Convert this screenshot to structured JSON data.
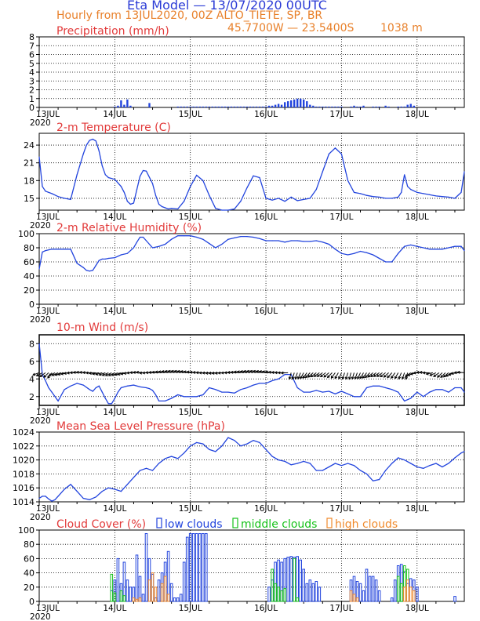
{
  "header": {
    "title": "Eta Model — 13/07/2020 00UTC",
    "subtitle": "Hourly from 13JUL2020, 00Z  ALTO_TIETE, SP, BR",
    "coords": "45.7700W — 23.5400S",
    "elevation": "1038  m"
  },
  "colors": {
    "title": "#2b3bd6",
    "header_orange": "#e8802a",
    "panel_title": "#e23a3a",
    "series": "#2244dd",
    "green": "#16c21a",
    "orange": "#f08a2c",
    "grid": "#000000"
  },
  "time_axis": {
    "labels": [
      "13JUL",
      "14JUL",
      "15JUL",
      "16JUL",
      "17JUL",
      "18JUL"
    ],
    "year": "2020",
    "hours_total": 135
  },
  "chart_data": [
    {
      "type": "bar",
      "title": "Precipitation (mm/h)",
      "ylim": [
        0,
        8
      ],
      "yticks": [
        0,
        1,
        2,
        3,
        4,
        5,
        6,
        7,
        8
      ],
      "x": [
        24,
        25,
        26,
        27,
        28,
        29,
        35,
        44,
        45,
        46,
        47,
        48,
        49,
        50,
        51,
        52,
        53,
        54,
        55,
        56,
        57,
        58,
        59,
        60,
        61,
        62,
        63,
        64,
        65,
        66,
        67,
        68,
        69,
        70,
        71,
        72,
        73,
        74,
        75,
        76,
        77,
        78,
        79,
        80,
        81,
        82,
        83,
        84,
        85,
        86,
        87,
        88,
        89,
        90,
        91,
        92,
        93,
        94,
        95,
        96,
        99,
        100,
        101,
        102,
        103,
        106,
        107,
        108,
        110,
        111,
        114,
        115,
        116,
        117,
        118,
        119
      ],
      "values": [
        0.1,
        0.2,
        0.8,
        0.3,
        0.9,
        0.2,
        0.5,
        0.1,
        0.1,
        0.1,
        0.1,
        0.1,
        0.1,
        0.1,
        0.1,
        0.1,
        0.1,
        0.1,
        0.1,
        0.1,
        0.1,
        0.1,
        0.1,
        0.1,
        0.1,
        0.1,
        0.1,
        0.1,
        0.1,
        0.1,
        0.1,
        0.1,
        0.1,
        0.1,
        0.1,
        0.1,
        0.2,
        0.2,
        0.3,
        0.4,
        0.3,
        0.6,
        0.7,
        0.8,
        0.9,
        1.0,
        1.0,
        0.9,
        0.7,
        0.3,
        0.2,
        0.1,
        0.1,
        0.1,
        0.1,
        0.1,
        0.1,
        0.1,
        0.1,
        0.1,
        0.1,
        0.2,
        0.1,
        0.1,
        0.2,
        0.1,
        0.1,
        0.1,
        0.2,
        0.1,
        0.1,
        0.1,
        0.1,
        0.3,
        0.4,
        0.2
      ]
    },
    {
      "type": "line",
      "title": "2-m Temperature (C)",
      "ylim": [
        13,
        26
      ],
      "yticks": [
        15,
        18,
        21,
        24
      ],
      "x": [
        0,
        1,
        2,
        4,
        6,
        8,
        10,
        12,
        14,
        15,
        16,
        17,
        18,
        19,
        20,
        21,
        22,
        24,
        26,
        27,
        28,
        29,
        30,
        31,
        32,
        33,
        34,
        36,
        37,
        38,
        39,
        40,
        41,
        42,
        44,
        46,
        48,
        50,
        52,
        54,
        56,
        58,
        60,
        62,
        64,
        66,
        68,
        70,
        72,
        74,
        76,
        78,
        80,
        82,
        84,
        86,
        88,
        90,
        92,
        94,
        96,
        98,
        100,
        102,
        104,
        106,
        108,
        110,
        112,
        114,
        115,
        116,
        117,
        118,
        120,
        122,
        124,
        126,
        128,
        130,
        132,
        134,
        135
      ],
      "values": [
        22,
        17,
        16.2,
        15.8,
        15.3,
        15,
        14.8,
        19,
        22.5,
        24,
        24.8,
        25,
        24.7,
        23,
        20.5,
        19,
        18.5,
        18.2,
        17,
        16,
        14.5,
        14,
        14.2,
        16.5,
        18.7,
        19.7,
        19.6,
        17.5,
        15.5,
        14,
        13.6,
        13.4,
        13.2,
        13.3,
        13.2,
        14.5,
        17,
        18.9,
        18,
        15.5,
        13.3,
        13,
        12.9,
        13.2,
        14.5,
        16.8,
        18.8,
        18.5,
        15,
        14.7,
        15,
        14.5,
        15.2,
        14.6,
        14.8,
        15,
        16.5,
        19.5,
        22.5,
        23.5,
        22.5,
        18,
        16,
        15.8,
        15.5,
        15.3,
        15.2,
        15,
        15,
        15.2,
        16,
        19,
        17,
        16.5,
        16,
        15.8,
        15.6,
        15.4,
        15.3,
        15.2,
        15,
        16,
        19.5
      ]
    },
    {
      "type": "line",
      "title": "2-m Relative Humidity (%)",
      "ylim": [
        0,
        100
      ],
      "yticks": [
        0,
        20,
        40,
        60,
        80,
        100
      ],
      "x": [
        0,
        1,
        2,
        4,
        6,
        8,
        10,
        12,
        14,
        15,
        16,
        17,
        18,
        19,
        20,
        21,
        22,
        24,
        26,
        28,
        30,
        31,
        32,
        33,
        34,
        35,
        36,
        38,
        40,
        42,
        44,
        46,
        48,
        50,
        52,
        54,
        56,
        58,
        60,
        62,
        64,
        66,
        68,
        70,
        72,
        74,
        76,
        78,
        80,
        82,
        84,
        86,
        88,
        90,
        92,
        94,
        96,
        98,
        100,
        102,
        104,
        106,
        108,
        110,
        112,
        114,
        116,
        118,
        120,
        122,
        124,
        126,
        128,
        130,
        132,
        134,
        135
      ],
      "values": [
        50,
        74,
        76,
        78,
        78,
        78,
        78,
        58,
        52,
        48,
        47,
        48,
        55,
        62,
        64,
        64,
        65,
        66,
        70,
        72,
        80,
        88,
        95,
        95,
        90,
        85,
        80,
        82,
        85,
        92,
        97,
        97,
        97,
        95,
        92,
        86,
        80,
        85,
        92,
        94,
        96,
        96,
        95,
        93,
        90,
        90,
        90,
        88,
        90,
        90,
        89,
        89,
        90,
        88,
        85,
        78,
        72,
        70,
        72,
        75,
        73,
        70,
        65,
        60,
        60,
        72,
        82,
        84,
        82,
        80,
        78,
        78,
        78,
        80,
        82,
        82,
        76
      ]
    },
    {
      "type": "line",
      "title": "10-m Wind (m/s)",
      "ylim": [
        1,
        9
      ],
      "yticks": [
        2,
        4,
        6,
        8
      ],
      "x": [
        0,
        1,
        2,
        3,
        4,
        5,
        6,
        8,
        10,
        12,
        14,
        16,
        17,
        18,
        19,
        20,
        21,
        22,
        23,
        24,
        25,
        26,
        28,
        30,
        32,
        34,
        35,
        36,
        37,
        38,
        40,
        42,
        44,
        46,
        48,
        50,
        52,
        54,
        56,
        58,
        60,
        62,
        64,
        66,
        68,
        70,
        72,
        74,
        76,
        78,
        80,
        82,
        84,
        86,
        88,
        90,
        92,
        94,
        96,
        98,
        100,
        102,
        104,
        106,
        108,
        110,
        112,
        114,
        116,
        118,
        120,
        122,
        124,
        126,
        128,
        130,
        132,
        134,
        135
      ],
      "values": [
        8,
        4.5,
        3.8,
        3,
        2.5,
        2,
        1.5,
        2.8,
        3.2,
        3.5,
        3.3,
        2.8,
        2.6,
        3,
        3.2,
        2.5,
        1.8,
        1.2,
        1.2,
        1.8,
        2.5,
        3,
        3.2,
        3.3,
        3.1,
        3,
        2.9,
        2.7,
        2.2,
        1.5,
        1.5,
        1.8,
        2.2,
        2,
        2,
        2,
        2.2,
        3,
        2.8,
        2.5,
        2.5,
        2.4,
        2.8,
        3,
        3.3,
        3.5,
        3.5,
        3.8,
        4,
        4.5,
        4.5,
        3,
        2.5,
        2.5,
        2.7,
        2.5,
        2.6,
        2.3,
        2.6,
        2.3,
        2,
        2,
        3,
        3.2,
        3.2,
        3,
        2.8,
        2.5,
        1.5,
        1.8,
        2.5,
        2,
        2.5,
        2.8,
        2.8,
        2.5,
        3,
        3,
        2.5
      ],
      "wind_vectors_note": "black arrows along y=4.5 indicating direction"
    },
    {
      "type": "line",
      "title": "Mean Sea Level Pressure (hPa)",
      "ylim": [
        1014,
        1024
      ],
      "yticks": [
        1014,
        1016,
        1018,
        1020,
        1022,
        1024
      ],
      "x": [
        0,
        1,
        2,
        3,
        4,
        5,
        6,
        8,
        10,
        12,
        14,
        16,
        18,
        20,
        22,
        24,
        26,
        28,
        30,
        32,
        34,
        36,
        38,
        40,
        42,
        44,
        46,
        48,
        50,
        52,
        54,
        56,
        58,
        60,
        62,
        64,
        66,
        68,
        70,
        72,
        74,
        76,
        78,
        80,
        82,
        84,
        86,
        88,
        90,
        92,
        94,
        96,
        98,
        100,
        102,
        104,
        106,
        108,
        110,
        112,
        114,
        116,
        118,
        120,
        122,
        124,
        126,
        128,
        130,
        132,
        134,
        135
      ],
      "values": [
        1014.5,
        1014.8,
        1014.8,
        1014.4,
        1014.1,
        1014.3,
        1014.8,
        1015.8,
        1016.5,
        1015.5,
        1014.5,
        1014.3,
        1014.7,
        1015.5,
        1016,
        1015.8,
        1015.5,
        1016.5,
        1017.5,
        1018.5,
        1018.8,
        1018.5,
        1019.5,
        1020.2,
        1020.5,
        1020.2,
        1021,
        1022,
        1022.5,
        1022.3,
        1021.5,
        1021.2,
        1022,
        1023.2,
        1022.8,
        1022,
        1022.3,
        1022.8,
        1022.5,
        1021.5,
        1020.5,
        1020,
        1019.8,
        1019.3,
        1019.5,
        1019.8,
        1019.5,
        1018.5,
        1018.5,
        1019,
        1019.5,
        1019.2,
        1019.5,
        1019.2,
        1018.5,
        1018,
        1017,
        1017.2,
        1018.5,
        1019.5,
        1020.3,
        1020,
        1019.5,
        1019,
        1018.8,
        1019.2,
        1019.5,
        1019,
        1019.5,
        1020.3,
        1021,
        1021.2
      ]
    },
    {
      "type": "bar",
      "title": "Cloud Cover (%)",
      "legend": [
        "low clouds",
        "middle clouds",
        "high clouds"
      ],
      "ylim": [
        0,
        100
      ],
      "yticks": [
        0,
        20,
        40,
        60,
        80,
        100
      ],
      "series": [
        {
          "name": "low clouds",
          "x": [
            23,
            24,
            25,
            26,
            27,
            28,
            29,
            30,
            31,
            32,
            33,
            34,
            35,
            36,
            37,
            38,
            39,
            40,
            41,
            42,
            43,
            44,
            45,
            46,
            47,
            48,
            49,
            50,
            51,
            52,
            53,
            73,
            74,
            75,
            76,
            77,
            78,
            79,
            80,
            81,
            82,
            83,
            84,
            85,
            86,
            87,
            88,
            89,
            99,
            100,
            101,
            102,
            103,
            104,
            105,
            106,
            107,
            108,
            112,
            113,
            114,
            115,
            116,
            117,
            118,
            119,
            120,
            132
          ],
          "values": [
            15,
            30,
            60,
            25,
            55,
            30,
            20,
            20,
            65,
            35,
            10,
            95,
            60,
            38,
            5,
            30,
            40,
            55,
            70,
            25,
            5,
            5,
            10,
            55,
            90,
            95,
            95,
            95,
            95,
            95,
            95,
            20,
            30,
            55,
            58,
            55,
            60,
            62,
            63,
            62,
            63,
            58,
            45,
            25,
            30,
            25,
            28,
            20,
            30,
            35,
            28,
            25,
            15,
            45,
            35,
            35,
            30,
            15,
            5,
            30,
            50,
            52,
            42,
            25,
            32,
            30,
            20,
            7
          ]
        },
        {
          "name": "middle clouds",
          "x": [
            23,
            24,
            26,
            27,
            74,
            75,
            76,
            77,
            78,
            81,
            82,
            114,
            115,
            116,
            117
          ],
          "values": [
            38,
            12,
            15,
            8,
            45,
            25,
            20,
            15,
            18,
            60,
            5,
            35,
            25,
            50,
            45
          ]
        },
        {
          "name": "high clouds",
          "x": [
            30,
            31,
            32,
            35,
            36,
            37,
            39,
            40,
            41,
            99,
            100,
            101,
            116,
            117,
            118,
            119
          ],
          "values": [
            5,
            3,
            5,
            30,
            40,
            20,
            25,
            35,
            10,
            15,
            10,
            5,
            20,
            30,
            20,
            15
          ]
        }
      ]
    }
  ]
}
